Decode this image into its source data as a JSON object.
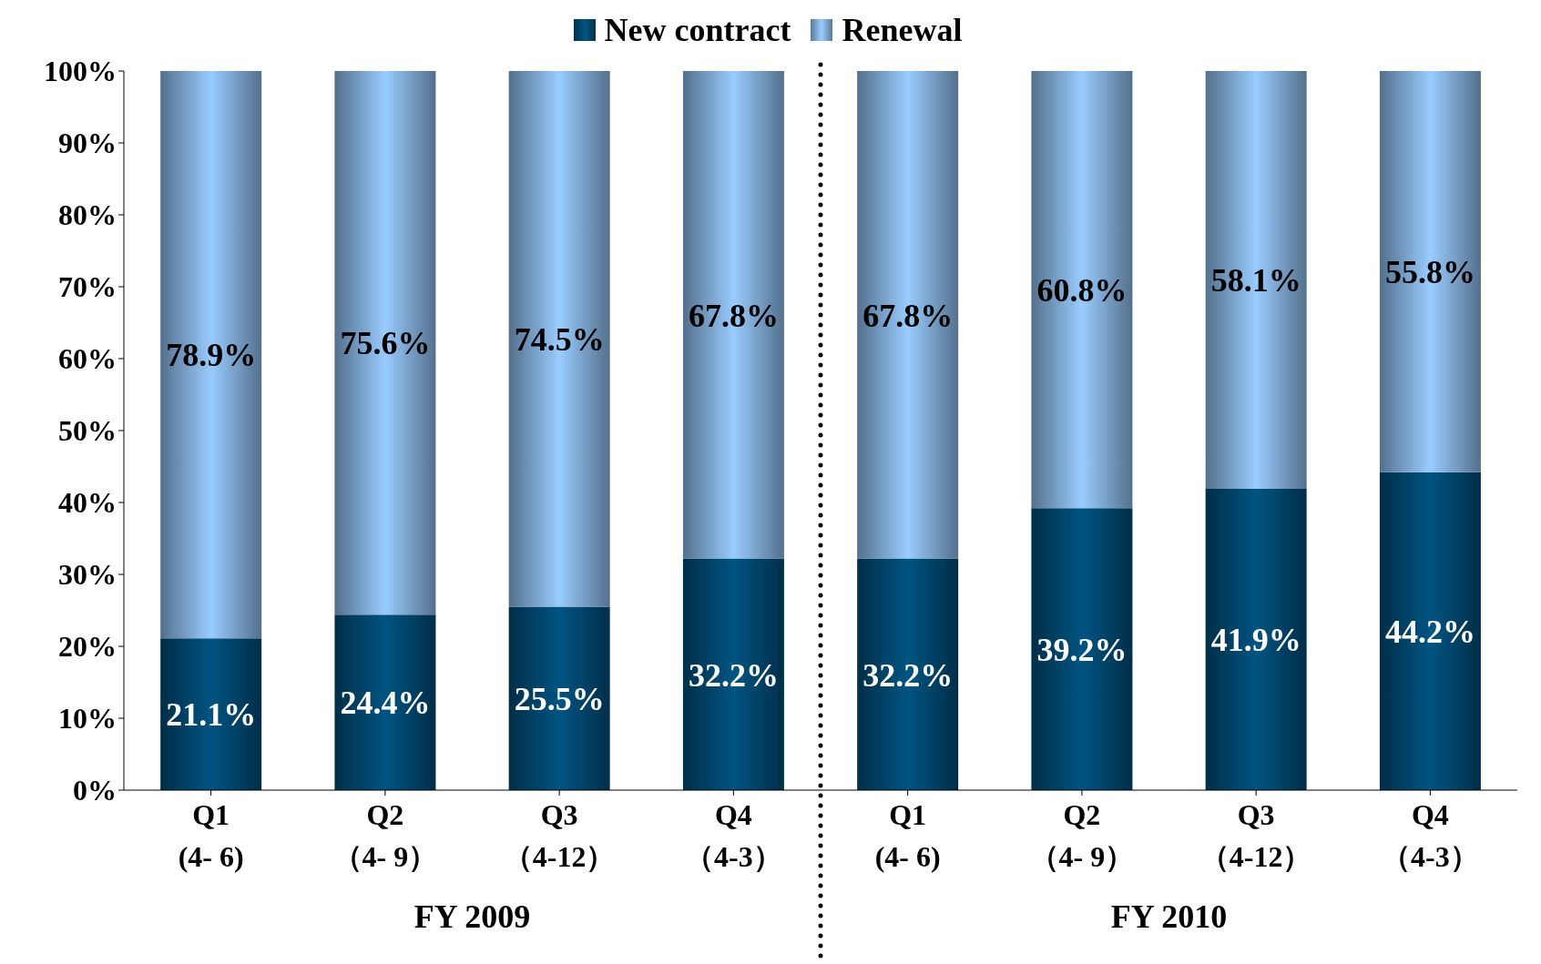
{
  "chart_data": {
    "type": "bar",
    "stacked": true,
    "legend": "top",
    "grid": false,
    "categories": [
      "Q1\n(4- 6)",
      "Q2\n（4- 9）",
      "Q3\n（4-12）",
      "Q4\n（4-3）",
      "Q1\n(4- 6)",
      "Q2\n（4- 9）",
      "Q3\n（4-12）",
      "Q4\n（4-3）"
    ],
    "series": [
      {
        "name": "New contract",
        "color": "#005482",
        "values": [
          21.1,
          24.4,
          25.5,
          32.2,
          32.2,
          39.2,
          41.9,
          44.2
        ],
        "value_labels": [
          "21.1%",
          "24.4%",
          "25.5%",
          "32.2%",
          "32.2%",
          "39.2%",
          "41.9%",
          "44.2%"
        ]
      },
      {
        "name": "Renewal",
        "color": "#99ccff",
        "values": [
          78.9,
          75.6,
          74.5,
          67.8,
          67.8,
          60.8,
          58.1,
          55.8
        ],
        "value_labels": [
          "78.9%",
          "75.6%",
          "74.5%",
          "67.8%",
          "67.8%",
          "60.8%",
          "58.1%",
          "55.8%"
        ]
      }
    ],
    "ylim": [
      0,
      100
    ],
    "yticks": [
      {
        "value": 0,
        "label": "0%"
      },
      {
        "value": 10,
        "label": "10%"
      },
      {
        "value": 20,
        "label": "20%"
      },
      {
        "value": 30,
        "label": "30%"
      },
      {
        "value": 40,
        "label": "40%"
      },
      {
        "value": 50,
        "label": "50%"
      },
      {
        "value": 60,
        "label": "60%"
      },
      {
        "value": 70,
        "label": "70%"
      },
      {
        "value": 80,
        "label": "80%"
      },
      {
        "value": 90,
        "label": "90%"
      },
      {
        "value": 100,
        "label": "100%"
      }
    ],
    "annotations": [
      "FY 2009",
      "FY 2010"
    ]
  }
}
